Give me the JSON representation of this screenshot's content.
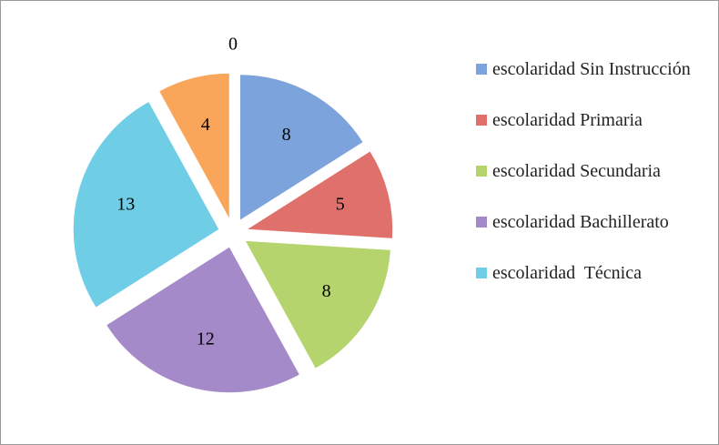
{
  "chart_data": {
    "type": "pie",
    "categories": [
      "escolaridad Sin Instrucción",
      "escolaridad Primaria",
      "escolaridad Secundaria",
      "escolaridad Bachillerato",
      "escolaridad  Técnica",
      null,
      null
    ],
    "values": [
      8,
      5,
      8,
      12,
      13,
      4,
      0
    ],
    "colors": [
      "#7da3dc",
      "#e0706c",
      "#b5d46e",
      "#a48ac8",
      "#6fcde6",
      "#f9a65a",
      "#2c4d75"
    ],
    "legend": "right"
  }
}
